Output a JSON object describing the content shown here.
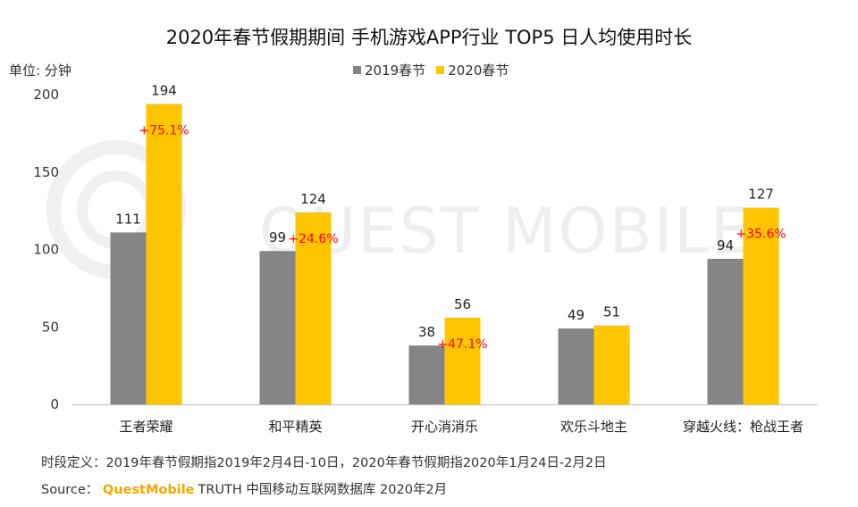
{
  "title": "2020年春节假期期间 手机游戏APP行业 TOP5 日人均使用时长",
  "unit_label": "单位: 分钟",
  "watermark": "QUEST MOBILE",
  "footnote": "时段定义：2019年春节假期指2019年2月4日-10日，2020年春节假期指2020年1月24日-2月2日",
  "source": {
    "prefix": "Source：",
    "brand": "QuestMobile",
    "text": "TRUTH 中国移动互联网数据库 2020年2月"
  },
  "colors": {
    "s2019": "#858487",
    "s2020": "#ffc600",
    "pct": "#ff0000"
  },
  "chart_data": {
    "type": "bar",
    "title": "2020年春节假期期间 手机游戏APP行业 TOP5 日人均使用时长",
    "ylabel": "单位: 分钟",
    "categories": [
      "王者荣耀",
      "和平精英",
      "开心消消乐",
      "欢乐斗地主",
      "穿越火线：枪战王者"
    ],
    "series": [
      {
        "name": "2019春节",
        "values": [
          111,
          99,
          38,
          49,
          94
        ]
      },
      {
        "name": "2020春节",
        "values": [
          194,
          124,
          56,
          51,
          127
        ]
      }
    ],
    "growth_labels": [
      "+75.1%",
      "+24.6%",
      "+47.1%",
      "",
      "+35.6%"
    ],
    "yticks": [
      0,
      50,
      100,
      150,
      200
    ],
    "ylim": [
      0,
      200
    ],
    "grid": false,
    "legend_position": "top-center"
  }
}
